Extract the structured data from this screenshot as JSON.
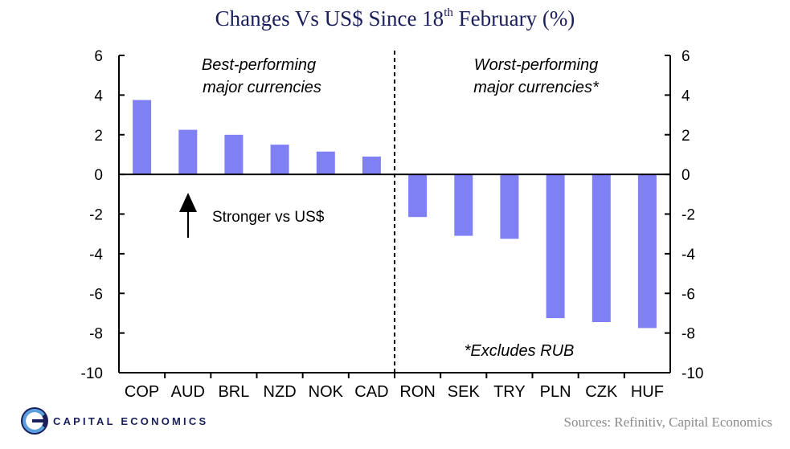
{
  "title": {
    "main": "Changes Vs US$ Since 18",
    "sup": "th",
    "rest": " February (%)"
  },
  "notes": {
    "best_line1": "Best-performing",
    "best_line2": "major currencies",
    "worst_line1": "Worst-performing",
    "worst_line2": "major currencies*",
    "excludes": "*Excludes RUB",
    "stronger": "Stronger vs US$"
  },
  "brand": {
    "name": "CAPITAL ECONOMICS",
    "sources": "Sources: Refinitiv, Capital Economics"
  },
  "colors": {
    "bar": "#8080f5",
    "navy": "#1a1f5c"
  },
  "chart_data": {
    "type": "bar",
    "title": "Changes Vs US$ Since 18th February (%)",
    "categories": [
      "COP",
      "AUD",
      "BRL",
      "NZD",
      "NOK",
      "CAD",
      "RON",
      "SEK",
      "TRY",
      "PLN",
      "CZK",
      "HUF"
    ],
    "values": [
      3.75,
      2.25,
      2.0,
      1.5,
      1.15,
      0.9,
      -2.15,
      -3.1,
      -3.25,
      -7.25,
      -7.45,
      -7.75
    ],
    "ylim": [
      -10,
      6
    ],
    "yticks": [
      6,
      4,
      2,
      0,
      -2,
      -4,
      -6,
      -8,
      -10
    ],
    "secondary_axis": true,
    "divider_after_category": "CAD",
    "grid": false,
    "legend": "none"
  }
}
